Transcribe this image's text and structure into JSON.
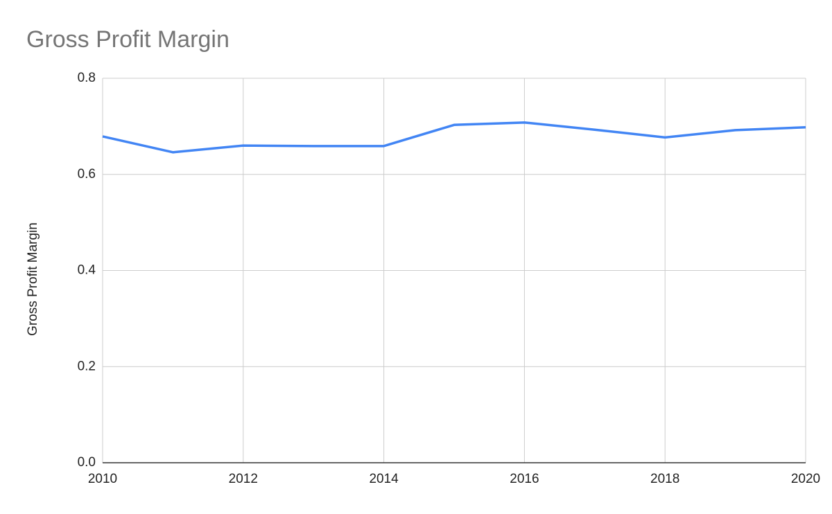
{
  "chart_data": {
    "type": "line",
    "title": "Gross Profit Margin",
    "y_label": "Gross Profit Margin",
    "x": [
      2010,
      2011,
      2012,
      2013,
      2014,
      2015,
      2016,
      2017,
      2018,
      2019,
      2020
    ],
    "series": [
      {
        "name": "Gross Profit Margin",
        "color": "#4285f4",
        "values": [
          0.679,
          0.646,
          0.66,
          0.659,
          0.659,
          0.703,
          0.708,
          0.693,
          0.677,
          0.692,
          0.698
        ]
      }
    ],
    "xlim": [
      2010,
      2020
    ],
    "xticks": [
      2010,
      2012,
      2014,
      2016,
      2018,
      2020
    ],
    "ylim": [
      0,
      0.8
    ],
    "yticks": [
      {
        "value": 0,
        "label": "0.0"
      },
      0.2,
      0.4,
      0.6,
      0.8
    ],
    "grid": true
  }
}
